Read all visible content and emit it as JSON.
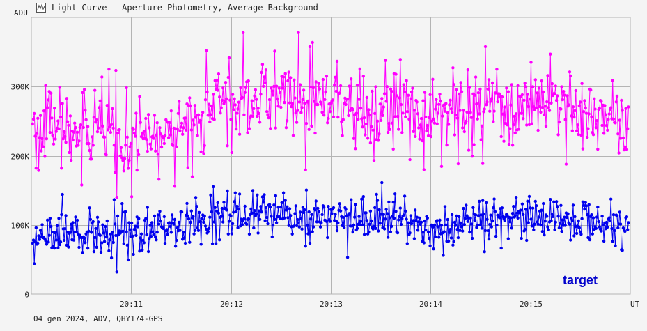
{
  "window": {
    "title": "Light Curve - Aperture Photometry, Average Background",
    "icon": "light-curve-icon"
  },
  "footer": {
    "info": "04 gen 2024, ADV, QHY174-GPS"
  },
  "colors": {
    "background": "#f4f4f4",
    "grid": "#b4b4b4",
    "magenta_series": "#ff00ff",
    "blue_series": "#0000ee",
    "label_text": "#0000cc"
  },
  "chart_data": {
    "type": "line",
    "title": "Light Curve - Aperture Photometry, Average Background",
    "ylabel": "ADU",
    "xlabel": "UT",
    "ylim": [
      0,
      400000
    ],
    "xlim": [
      "20:10:00",
      "20:16:00"
    ],
    "y_ticks": [
      {
        "value": 0,
        "label": "0"
      },
      {
        "value": 100000,
        "label": "100K"
      },
      {
        "value": 200000,
        "label": "200K"
      },
      {
        "value": 300000,
        "label": "300K"
      }
    ],
    "x_ticks": [
      {
        "value": "20:11:00",
        "label": "20:11"
      },
      {
        "value": "20:12:00",
        "label": "20:12"
      },
      {
        "value": "20:13:00",
        "label": "20:13"
      },
      {
        "value": "20:14:00",
        "label": "20:14"
      },
      {
        "value": "20:15:00",
        "label": "20:15"
      }
    ],
    "grid": true,
    "marker": "circle",
    "annotations": [
      {
        "text": "target",
        "series": "blue"
      }
    ],
    "series": [
      {
        "color": "#ff00ff",
        "x": [
          "20:10:00",
          "20:10:15",
          "20:10:30",
          "20:10:45",
          "20:11:00",
          "20:11:15",
          "20:11:30",
          "20:11:45",
          "20:12:00",
          "20:12:15",
          "20:12:30",
          "20:12:45",
          "20:13:00",
          "20:13:15",
          "20:13:30",
          "20:13:45",
          "20:14:00",
          "20:14:15",
          "20:14:30",
          "20:14:45",
          "20:15:00",
          "20:15:15",
          "20:15:30",
          "20:15:45",
          "20:16:00"
        ],
        "values": [
          240000,
          238000,
          235000,
          236000,
          232000,
          228000,
          242000,
          262000,
          287000,
          285000,
          281000,
          278000,
          274000,
          268000,
          264000,
          265000,
          255000,
          262000,
          268000,
          268000,
          270000,
          275000,
          265000,
          255000,
          243000
        ],
        "noise_amplitude": 30000,
        "min": 140000,
        "max": 378000
      },
      {
        "color": "#0000ee",
        "x": [
          "20:10:00",
          "20:10:15",
          "20:10:30",
          "20:10:45",
          "20:11:00",
          "20:11:15",
          "20:11:30",
          "20:11:45",
          "20:12:00",
          "20:12:15",
          "20:12:30",
          "20:12:45",
          "20:13:00",
          "20:13:15",
          "20:13:30",
          "20:13:45",
          "20:14:00",
          "20:14:15",
          "20:14:30",
          "20:14:45",
          "20:15:00",
          "20:15:15",
          "20:15:30",
          "20:15:45",
          "20:16:00"
        ],
        "values": [
          90000,
          90000,
          88000,
          88000,
          90000,
          92000,
          96000,
          108000,
          118000,
          117000,
          116000,
          112000,
          108000,
          110000,
          110000,
          106000,
          100000,
          100000,
          105000,
          106000,
          108000,
          112000,
          108000,
          95000,
          95000
        ],
        "noise_amplitude": 17000,
        "min": 28000,
        "max": 176000
      }
    ]
  }
}
